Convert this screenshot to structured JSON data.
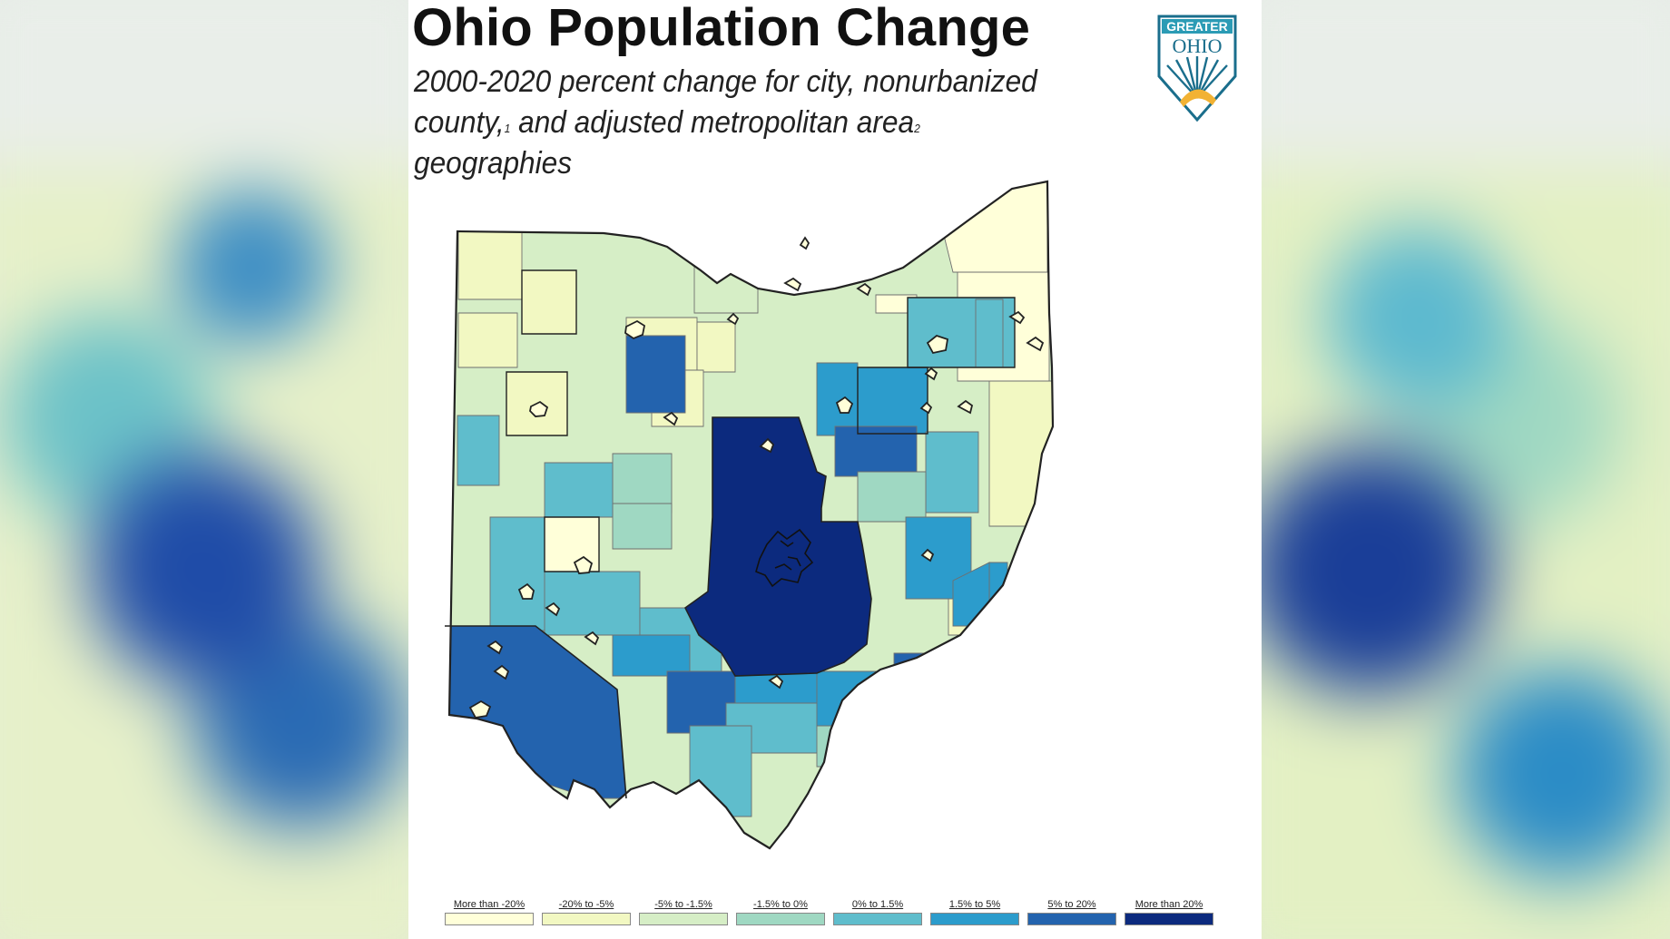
{
  "title": "Ohio Population Change",
  "subtitle": {
    "line1": "2000-2020 percent change for city, nonurbanized",
    "line2a": "county,",
    "footnote1": "1",
    "line2b": " and adjusted metropolitan area",
    "footnote2": "2",
    "line2c": " geographies"
  },
  "logo": {
    "line1": "GREATER",
    "line2": "OHIO",
    "colors": [
      "#1a6e8c",
      "#f2b233",
      "#2b9bb5"
    ]
  },
  "legend": [
    {
      "label": "More than -20%",
      "color": "#ffffd9"
    },
    {
      "label": "-20% to -5%",
      "color": "#f2f8c2"
    },
    {
      "label": "-5% to -1.5%",
      "color": "#d6eec6"
    },
    {
      "label": "-1.5% to 0%",
      "color": "#9fd8c2"
    },
    {
      "label": "0% to 1.5%",
      "color": "#5fbdcc"
    },
    {
      "label": "1.5% to 5%",
      "color": "#2c9ccc"
    },
    {
      "label": "5% to 20%",
      "color": "#2363ae"
    },
    {
      "label": "More than 20%",
      "color": "#0c2a7e"
    }
  ],
  "region_classes": {
    "columbus_metro": "More than 20%",
    "cincinnati_metro": "5% to 20%",
    "dayton_area": "0% to 1.5%",
    "northeast_cleveland": "0% to 1.5%",
    "northwest_rural": "-20% to -5%",
    "southeast_rural": "-5% to -1.5%"
  }
}
